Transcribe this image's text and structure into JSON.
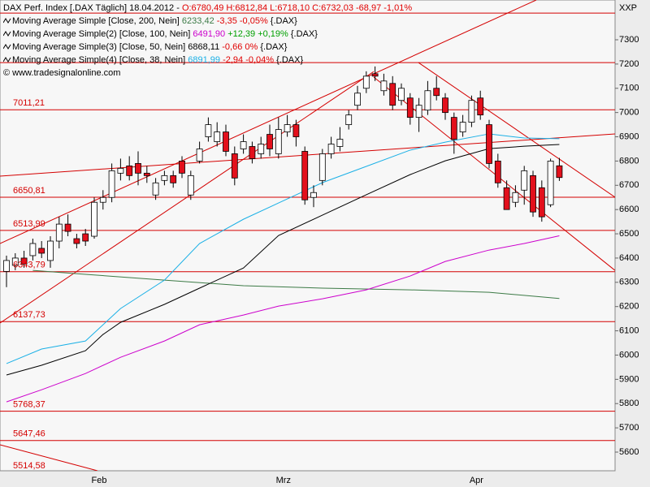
{
  "chart_data": {
    "type": "candlestick",
    "title": "DAX Perf. Index [.DAX Täglich]",
    "date": "18.04.2012 -",
    "quote": "O:6780,49 H:6812,84 L:6718,10 C:6732,03 -68,97 -1,01%",
    "quote_color": "#e00000",
    "watermark": "© www.tradesignalonline.com",
    "y_axis_label": "XXP",
    "up_color": "#ffffff",
    "down_color": "#e3101c",
    "categories": [
      null,
      null,
      null,
      null,
      null,
      null,
      null,
      null,
      null,
      null,
      "Feb",
      null,
      null,
      null,
      null,
      null,
      null,
      null,
      null,
      null,
      null,
      null,
      null,
      null,
      null,
      null,
      null,
      null,
      null,
      null,
      null,
      "Mrz",
      null,
      null,
      null,
      null,
      null,
      null,
      null,
      null,
      null,
      null,
      null,
      null,
      null,
      null,
      null,
      null,
      null,
      null,
      null,
      null,
      null,
      "Apr",
      null,
      null,
      null,
      null,
      null,
      null,
      null,
      null,
      null,
      null
    ],
    "open": [
      6345,
      6370,
      6400,
      6410,
      6440,
      6390,
      6470,
      6540,
      6480,
      6500,
      6490,
      6630,
      6650,
      6750,
      6780,
      6790,
      6750,
      6660,
      6720,
      6740,
      6800,
      6660,
      6800,
      6900,
      6880,
      6920,
      6830,
      6850,
      6860,
      6830,
      6910,
      6830,
      6920,
      6950,
      6840,
      6650,
      6720,
      6830,
      6860,
      6950,
      7030,
      7100,
      7160,
      7090,
      7120,
      7050,
      7060,
      6980,
      7010,
      7100,
      7060,
      6980,
      6920,
      6960,
      7060,
      6950,
      6800,
      6690,
      6630,
      6680,
      6740,
      6690,
      6620,
      6780.49
    ],
    "high": [
      6410,
      6420,
      6430,
      6480,
      6470,
      6490,
      6570,
      6580,
      6500,
      6520,
      6650,
      6680,
      6790,
      6810,
      6820,
      6840,
      6780,
      6730,
      6760,
      6760,
      6820,
      6760,
      6880,
      6980,
      6960,
      6950,
      6860,
      6910,
      6880,
      6900,
      6950,
      6980,
      6990,
      6970,
      6860,
      6700,
      6850,
      6900,
      6940,
      7010,
      7110,
      7170,
      7190,
      7160,
      7150,
      7120,
      7080,
      7060,
      7130,
      7150,
      7080,
      7000,
      6990,
      7070,
      7090,
      6970,
      6830,
      6720,
      6700,
      6780,
      6760,
      6720,
      6810,
      6812.84
    ],
    "low": [
      6280,
      6350,
      6360,
      6390,
      6400,
      6360,
      6440,
      6490,
      6440,
      6450,
      6480,
      6600,
      6630,
      6720,
      6720,
      6700,
      6710,
      6640,
      6700,
      6690,
      6730,
      6640,
      6790,
      6880,
      6860,
      6820,
      6700,
      6830,
      6790,
      6810,
      6820,
      6810,
      6900,
      6860,
      6620,
      6610,
      6700,
      6810,
      6840,
      6930,
      7010,
      7080,
      7130,
      7070,
      7010,
      7030,
      6950,
      6920,
      6990,
      7050,
      6970,
      6830,
      6900,
      6940,
      6970,
      6770,
      6690,
      6600,
      6610,
      6620,
      6570,
      6550,
      6610,
      6718.1
    ],
    "close": [
      6390,
      6400,
      6375,
      6460,
      6420,
      6470,
      6540,
      6510,
      6460,
      6470,
      6630,
      6650,
      6760,
      6770,
      6740,
      6750,
      6740,
      6710,
      6740,
      6710,
      6750,
      6740,
      6850,
      6950,
      6920,
      6840,
      6730,
      6880,
      6810,
      6870,
      6850,
      6930,
      6950,
      6900,
      6640,
      6670,
      6830,
      6870,
      6890,
      6990,
      7080,
      7150,
      7150,
      7130,
      7030,
      7100,
      6980,
      7030,
      7090,
      7070,
      7000,
      6890,
      6960,
      7050,
      6990,
      6790,
      6710,
      6600,
      6670,
      6760,
      6590,
      6570,
      6800,
      6732.03
    ],
    "xlim": [
      -0.74,
      69.35
    ],
    "ylim": [
      5523,
      7464
    ],
    "yticks": [
      5600,
      5700,
      5800,
      5900,
      6000,
      6100,
      6200,
      6300,
      6400,
      6500,
      6600,
      6700,
      6800,
      6900,
      7000,
      7100,
      7200,
      7300
    ],
    "series": [
      {
        "name": "Moving Average Simple [Close, 200, Nein]",
        "color": "#3c7a46",
        "last_label": "6233,42",
        "change": "-3,35 -0,05%",
        "change_color": "#e00000",
        "suffix": "{.DAX}",
        "x": [
          3,
          9,
          18,
          27,
          36,
          46,
          55,
          63
        ],
        "values": [
          6349,
          6333,
          6309,
          6286,
          6276,
          6269,
          6259,
          6233.42
        ]
      },
      {
        "name": "Moving Average Simple(2) [Close, 100, Nein]",
        "color": "#cc00cc",
        "last_label": "6491,90",
        "change": "+12,39 +0,19%",
        "change_color": "#00a000",
        "suffix": "{.DAX}",
        "x": [
          0,
          4,
          9,
          13,
          18,
          22,
          27,
          31,
          36,
          41,
          46,
          50,
          55,
          59,
          63
        ],
        "values": [
          5807,
          5857,
          5924,
          5991,
          6058,
          6125,
          6165,
          6202,
          6232,
          6269,
          6326,
          6386,
          6433,
          6460,
          6491.9
        ]
      },
      {
        "name": "Moving Average Simple(3) [Close, 50, Nein]",
        "color": "#000000",
        "last_label": "6868,11",
        "change": "-0,66 0%",
        "change_color": "#e00000",
        "suffix": "{.DAX}",
        "x": [
          0,
          4,
          9,
          11,
          13,
          18,
          22,
          27,
          31,
          36,
          41,
          46,
          50,
          55,
          59,
          63
        ],
        "values": [
          5918,
          5958,
          6018,
          6085,
          6135,
          6209,
          6276,
          6359,
          6493,
          6577,
          6661,
          6744,
          6801,
          6851,
          6861,
          6868.11
        ]
      },
      {
        "name": "Moving Average Simple(4) [Close, 38, Nein]",
        "color": "#1ab0e6",
        "last_label": "6891,99",
        "change": "-2,94 -0,04%",
        "change_color": "#e00000",
        "suffix": "{.DAX}",
        "x": [
          0,
          4,
          9,
          11,
          13,
          18,
          22,
          27,
          31,
          36,
          41,
          46,
          50,
          55,
          59,
          63
        ],
        "values": [
          5965,
          6025,
          6058,
          6125,
          6192,
          6309,
          6460,
          6560,
          6627,
          6711,
          6778,
          6845,
          6878,
          6912,
          6895,
          6891.99
        ]
      }
    ],
    "level_color": "#d40000",
    "levels": [
      7410,
      7206,
      {
        "value": 7011.21,
        "label": "7011,21"
      },
      {
        "value": 6650.81,
        "label": "6650,81"
      },
      {
        "value": 6513.99,
        "label": "6513,99"
      },
      {
        "value": 6343.79,
        "label": "6343,79"
      },
      {
        "value": 6137.73,
        "label": "6137,73"
      },
      {
        "value": 5768.37,
        "label": "5768,37"
      },
      {
        "value": 5647.46,
        "label": "5647,46"
      },
      {
        "value": 5514.58,
        "label": "5514,58"
      }
    ],
    "trendlines": [
      {
        "x": [
          -0.74,
          60.37
        ],
        "values": [
          6460,
          7464
        ]
      },
      {
        "x": [
          -0.74,
          41.85
        ],
        "values": [
          6132,
          7169
        ]
      },
      {
        "x": [
          -0.74,
          69.35
        ],
        "values": [
          6738,
          6912
        ]
      },
      {
        "x": [
          46.94,
          69.35
        ],
        "values": [
          7206,
          6651
        ]
      },
      {
        "x": [
          41.85,
          69.35
        ],
        "values": [
          7146,
          6349
        ]
      },
      {
        "x": [
          -0.74,
          10.37
        ],
        "values": [
          5630,
          5523
        ]
      }
    ]
  }
}
